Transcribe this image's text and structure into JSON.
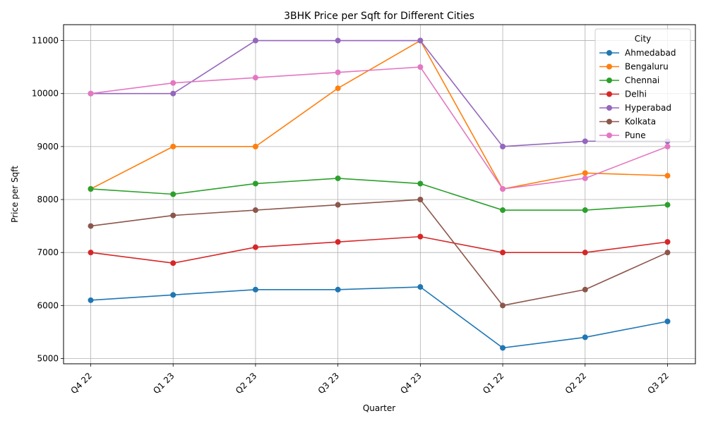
{
  "chart_data": {
    "type": "line",
    "title": "3BHK Price per Sqft for Different Cities",
    "xlabel": "Quarter",
    "ylabel": "Price per Sqft",
    "categories": [
      "Q4 22",
      "Q1 23",
      "Q2 23",
      "Q3 23",
      "Q4 23",
      "Q1 22",
      "Q2 22",
      "Q3 22"
    ],
    "ylim": [
      4900,
      11300
    ],
    "yticks": [
      5000,
      6000,
      7000,
      8000,
      9000,
      10000,
      11000
    ],
    "grid": true,
    "legend": {
      "title": "City",
      "placement": "top-right"
    },
    "series": [
      {
        "name": "Ahmedabad",
        "color": "#1f77b4",
        "values": [
          6100,
          6200,
          6300,
          6300,
          6350,
          5200,
          5400,
          5700
        ]
      },
      {
        "name": "Bengaluru",
        "color": "#ff7f0e",
        "values": [
          8200,
          9000,
          9000,
          10100,
          11000,
          8200,
          8500,
          8450
        ]
      },
      {
        "name": "Chennai",
        "color": "#2ca02c",
        "values": [
          8200,
          8100,
          8300,
          8400,
          8300,
          7800,
          7800,
          7900
        ]
      },
      {
        "name": "Delhi",
        "color": "#d62728",
        "values": [
          7000,
          6800,
          7100,
          7200,
          7300,
          7000,
          7000,
          7200
        ]
      },
      {
        "name": "Hyperabad",
        "color": "#9467bd",
        "values": [
          10000,
          10000,
          11000,
          11000,
          11000,
          9000,
          9100,
          9100
        ]
      },
      {
        "name": "Kolkata",
        "color": "#8c564b",
        "values": [
          7500,
          7700,
          7800,
          7900,
          8000,
          6000,
          6300,
          7000
        ]
      },
      {
        "name": "Pune",
        "color": "#e377c2",
        "values": [
          10000,
          10200,
          10300,
          10400,
          10500,
          8200,
          8400,
          9000
        ]
      }
    ]
  }
}
